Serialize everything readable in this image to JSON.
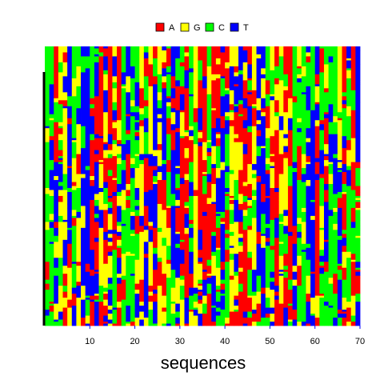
{
  "chart_data": {
    "type": "heatmap",
    "xlabel": "sequences",
    "xlim": [
      0,
      70
    ],
    "x_ticks": [
      10,
      20,
      30,
      40,
      50,
      60,
      70
    ],
    "legend": [
      {
        "label": "A",
        "color": "#ff0000"
      },
      {
        "label": "G",
        "color": "#ffff00"
      },
      {
        "label": "C",
        "color": "#00ff00"
      },
      {
        "label": "T",
        "color": "#0000ff"
      }
    ],
    "legend_position": "top-center",
    "column_count": 70,
    "row_count": 140,
    "grid": false
  }
}
